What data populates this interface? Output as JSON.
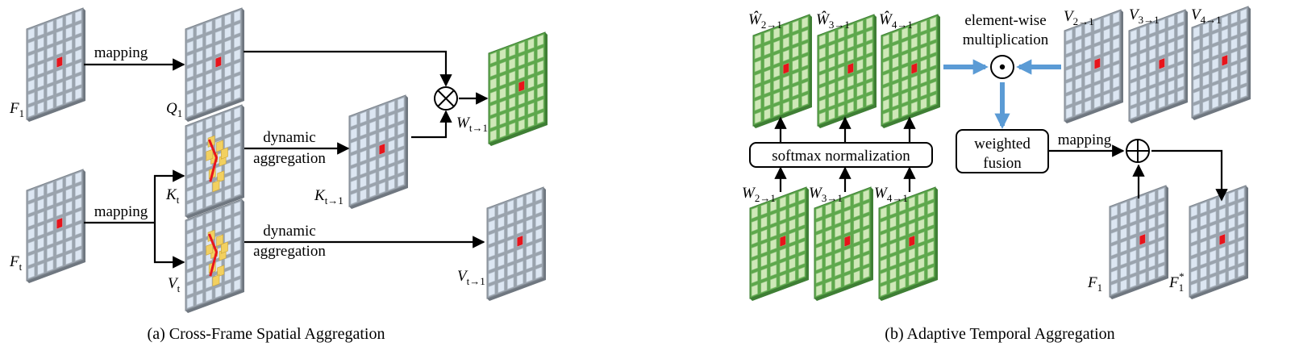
{
  "colors": {
    "gray_panel": "#9aa3ad",
    "gray_cell": "#dce6f2",
    "green_panel": "#5ea84c",
    "green_cell": "#cfe8b8",
    "highlight_cell": "#e8141b",
    "offset_cell": "#f2d060",
    "blue_arrow": "#5b9bd5",
    "black_arrow": "#000000"
  },
  "part_a": {
    "caption": "(a) Cross-Frame Spatial Aggregation",
    "labels": {
      "mapping_top": "mapping",
      "mapping_bottom": "mapping",
      "dynamic_1": "dynamic",
      "aggregation_1": "aggregation",
      "dynamic_2": "dynamic",
      "aggregation_2": "aggregation"
    },
    "operator_symbol": "⊗",
    "vars": {
      "F1": {
        "base": "F",
        "sub": "1"
      },
      "Q1": {
        "base": "Q",
        "sub": "1"
      },
      "Wt1": {
        "base": "W",
        "sub": "t→1"
      },
      "Kt": {
        "base": "K",
        "sub": "t"
      },
      "Kt1": {
        "base": "K",
        "sub": "t→1"
      },
      "Ft": {
        "base": "F",
        "sub": "t"
      },
      "Vt": {
        "base": "V",
        "sub": "t"
      },
      "Vt1": {
        "base": "V",
        "sub": "t→1"
      }
    }
  },
  "part_b": {
    "caption": "(b) Adaptive Temporal Aggregation",
    "labels": {
      "elementwise_line1": "element-wise",
      "elementwise_line2": "multiplication",
      "softmax": "softmax normalization",
      "weighted_line1": "weighted",
      "weighted_line2": "fusion",
      "mapping": "mapping"
    },
    "operator_dot": "⊙",
    "operator_plus": "⊕",
    "vars": {
      "W21hat": {
        "base": "Ŵ",
        "sub": "2→1"
      },
      "W31hat": {
        "base": "Ŵ",
        "sub": "3→1"
      },
      "W41hat": {
        "base": "Ŵ",
        "sub": "4→1"
      },
      "V21": {
        "base": "V",
        "sub": "2→1"
      },
      "V31": {
        "base": "V",
        "sub": "3→1"
      },
      "V41": {
        "base": "V",
        "sub": "4→1"
      },
      "W21": {
        "base": "W",
        "sub": "2→1"
      },
      "W31": {
        "base": "W",
        "sub": "3→1"
      },
      "W41": {
        "base": "W",
        "sub": "4→1"
      },
      "F1": {
        "base": "F",
        "sub": "1"
      },
      "F1star": {
        "base": "F",
        "sub": "1",
        "sup": "*"
      }
    }
  }
}
